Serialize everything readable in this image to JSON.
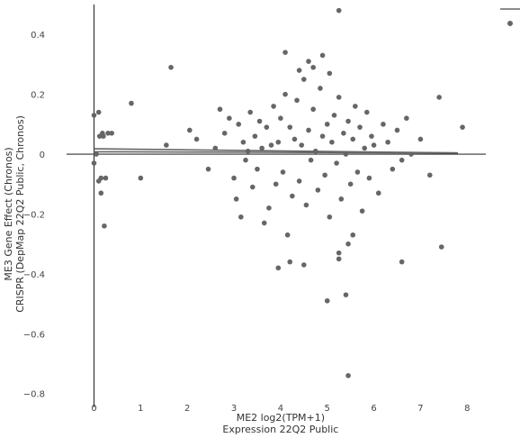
{
  "chart_data": {
    "type": "scatter",
    "title": "",
    "xlabel": [
      "ME2 log2(TPM+1)",
      "Expression 22Q2 Public"
    ],
    "ylabel": [
      "ME3 Gene Effect (Chronos)",
      "CRISPR (DepMap 22Q2 Public, Chronos)"
    ],
    "xlim": [
      -0.55,
      8.4
    ],
    "ylim": [
      -0.84,
      0.5
    ],
    "xticks": [
      "0",
      "1",
      "2",
      "3",
      "4",
      "5",
      "6",
      "7",
      "8"
    ],
    "yticks": [
      "0.4",
      "0.2",
      "0",
      "−0.2",
      "−0.4",
      "−0.6",
      "−0.8"
    ],
    "grid": false,
    "legend": "top-right",
    "series": [
      {
        "x": [
          0.0,
          0.05,
          0.1,
          0.12,
          0.18,
          0.2,
          0.22,
          0.25,
          0.3,
          0.38,
          0.0,
          0.15,
          0.8,
          1.0,
          1.55,
          1.65,
          0.1,
          0.15,
          2.05,
          2.2,
          2.45,
          2.6,
          2.7,
          2.8,
          2.9,
          3.0,
          3.05,
          3.1,
          3.15,
          3.2,
          3.25,
          3.3,
          3.35,
          3.4,
          3.45,
          3.5,
          3.55,
          3.6,
          3.65,
          3.7,
          3.75,
          3.8,
          3.85,
          3.9,
          3.95,
          4.0,
          4.05,
          4.1,
          4.15,
          4.2,
          4.25,
          4.3,
          4.35,
          4.4,
          4.45,
          4.5,
          4.55,
          4.6,
          4.65,
          4.7,
          4.75,
          4.8,
          4.85,
          4.9,
          4.95,
          5.0,
          5.05,
          5.1,
          5.15,
          5.2,
          5.25,
          5.3,
          5.35,
          5.4,
          5.45,
          5.5,
          5.55,
          5.6,
          5.65,
          5.7,
          5.75,
          5.8,
          5.85,
          5.9,
          5.95,
          6.0,
          6.1,
          6.2,
          6.3,
          6.4,
          6.5,
          6.6,
          6.7,
          6.8,
          7.0,
          7.2,
          7.4,
          7.45,
          7.9,
          4.1,
          4.4,
          4.6,
          4.7,
          4.9,
          5.05,
          5.25,
          5.45,
          5.55,
          5.25,
          5.0,
          4.2,
          4.5,
          6.6,
          3.95
        ],
        "y": [
          0.13,
          0.0,
          0.14,
          0.06,
          0.07,
          0.06,
          -0.24,
          -0.08,
          0.07,
          0.07,
          -0.03,
          -0.13,
          0.17,
          -0.08,
          0.03,
          0.29,
          -0.09,
          -0.08,
          0.08,
          0.05,
          -0.05,
          0.02,
          0.15,
          0.07,
          0.12,
          -0.08,
          -0.15,
          0.1,
          -0.21,
          0.04,
          -0.02,
          0.01,
          0.14,
          -0.11,
          0.06,
          -0.05,
          0.11,
          0.02,
          -0.23,
          0.09,
          -0.18,
          0.03,
          0.16,
          -0.1,
          0.04,
          0.12,
          -0.06,
          0.2,
          -0.27,
          0.09,
          -0.14,
          0.05,
          0.18,
          -0.09,
          0.03,
          0.25,
          -0.17,
          0.08,
          -0.02,
          0.15,
          0.01,
          -0.12,
          0.22,
          0.06,
          -0.07,
          0.1,
          -0.21,
          0.04,
          0.13,
          -0.03,
          0.19,
          -0.15,
          0.07,
          0.0,
          0.11,
          -0.1,
          0.05,
          0.16,
          -0.06,
          0.09,
          -0.19,
          0.02,
          0.14,
          -0.08,
          0.06,
          0.03,
          -0.13,
          0.1,
          0.04,
          -0.05,
          0.08,
          -0.02,
          0.12,
          0.0,
          0.05,
          -0.07,
          0.19,
          -0.31,
          0.09,
          0.34,
          0.28,
          0.31,
          0.29,
          0.33,
          0.27,
          -0.33,
          -0.3,
          -0.27,
          -0.35,
          -0.49,
          -0.36,
          -0.37,
          -0.36,
          -0.38
        ],
        "outliers": {
          "x": [
            5.25,
            5.45,
            5.4
          ],
          "y": [
            0.48,
            -0.74,
            -0.47
          ]
        }
      }
    ],
    "trend_lines": [
      {
        "x": [
          0.0,
          7.8
        ],
        "y": [
          0.018,
          0.004
        ]
      },
      {
        "x": [
          0.0,
          7.8
        ],
        "y": [
          0.008,
          0.004
        ]
      }
    ],
    "colors": {
      "point": "#666666",
      "axis": "#333333",
      "trend": "#666666"
    }
  }
}
